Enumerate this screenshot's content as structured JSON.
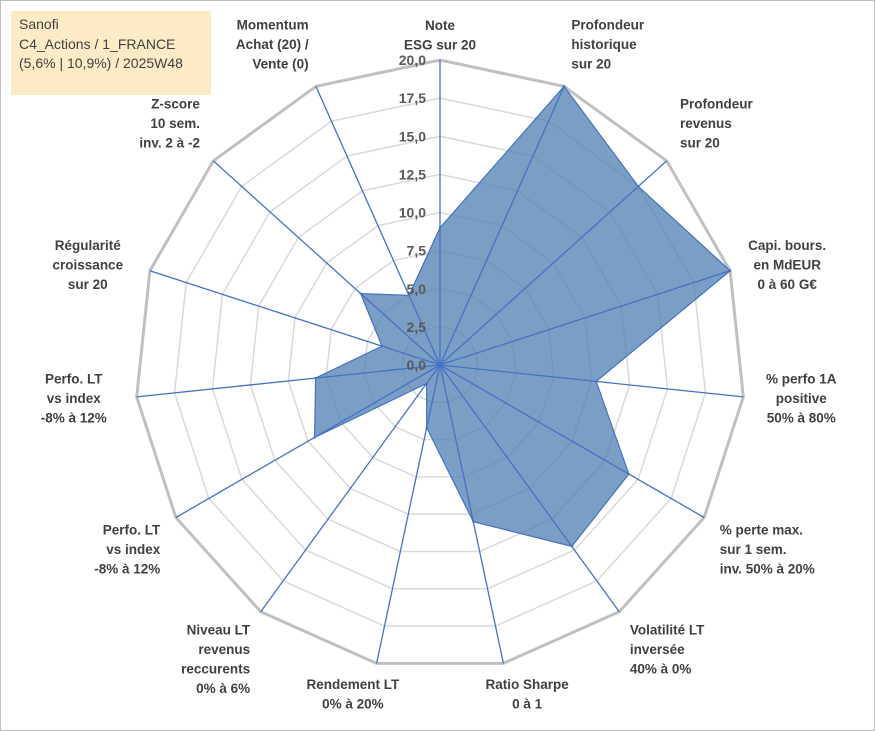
{
  "info_box": {
    "company": "Sanofi",
    "portfolio": "C4_Actions / 1_FRANCE",
    "details": "(5,6% | 10,9%) / 2025W48"
  },
  "colors": {
    "fill": "#4f7db1",
    "stroke": "#4472c4",
    "grid_outer": "#c0c0c0",
    "grid_inner": "#d9d9d9",
    "spoke": "#4472c4",
    "info_bg": "#fdebc8"
  },
  "chart_data": {
    "type": "radar",
    "rmin": 0,
    "rmax": 20,
    "tick_step": 2.5,
    "tick_labels": [
      "0,0",
      "2,5",
      "5,0",
      "7,5",
      "10,0",
      "12,5",
      "15,0",
      "17,5",
      "20,0"
    ],
    "grid": true,
    "axes": [
      {
        "label": [
          "Note",
          "ESG sur 20"
        ],
        "value": 9.0
      },
      {
        "label": [
          "Profondeur",
          "historique",
          "sur 20"
        ],
        "value": 20.0
      },
      {
        "label": [
          "Profondeur",
          "revenus",
          "sur 20"
        ],
        "value": 17.5
      },
      {
        "label": [
          "Capi. bours.",
          "en MdEUR",
          "0 à 60 G€"
        ],
        "value": 20.0
      },
      {
        "label": [
          "% perfo 1A",
          "positive",
          "50% à 80%"
        ],
        "value": 10.3
      },
      {
        "label": [
          "% perte max.",
          "sur 1 sem.",
          "inv. 50% à 20%"
        ],
        "value": 14.3
      },
      {
        "label": [
          "Volatilité LT",
          "inversée",
          "40% à 0%"
        ],
        "value": 14.7
      },
      {
        "label": [
          "Ratio Sharpe",
          "0 à 1"
        ],
        "value": 10.5
      },
      {
        "label": [
          "Rendement LT",
          "0% à 20%"
        ],
        "value": 4.2
      },
      {
        "label": [
          "Niveau LT",
          "revenus",
          "reccurents",
          "0% à 6%"
        ],
        "value": 1.5
      },
      {
        "label": [
          "Perfo. LT",
          "vs index",
          "-8% à 12%"
        ],
        "value": 9.5
      },
      {
        "label": [
          "Perfo. LT",
          "vs index",
          "-8% à 12%"
        ],
        "value": 8.2
      },
      {
        "label": [
          "Régularité",
          "croissance",
          "sur 20"
        ],
        "value": 4.0
      },
      {
        "label": [
          "Z-score",
          "10 sem.",
          "inv. 2 à -2"
        ],
        "value": 7.0
      },
      {
        "label": [
          "Momentum",
          "Achat (20) /",
          "Vente (0)"
        ],
        "value": 5.0
      }
    ]
  }
}
